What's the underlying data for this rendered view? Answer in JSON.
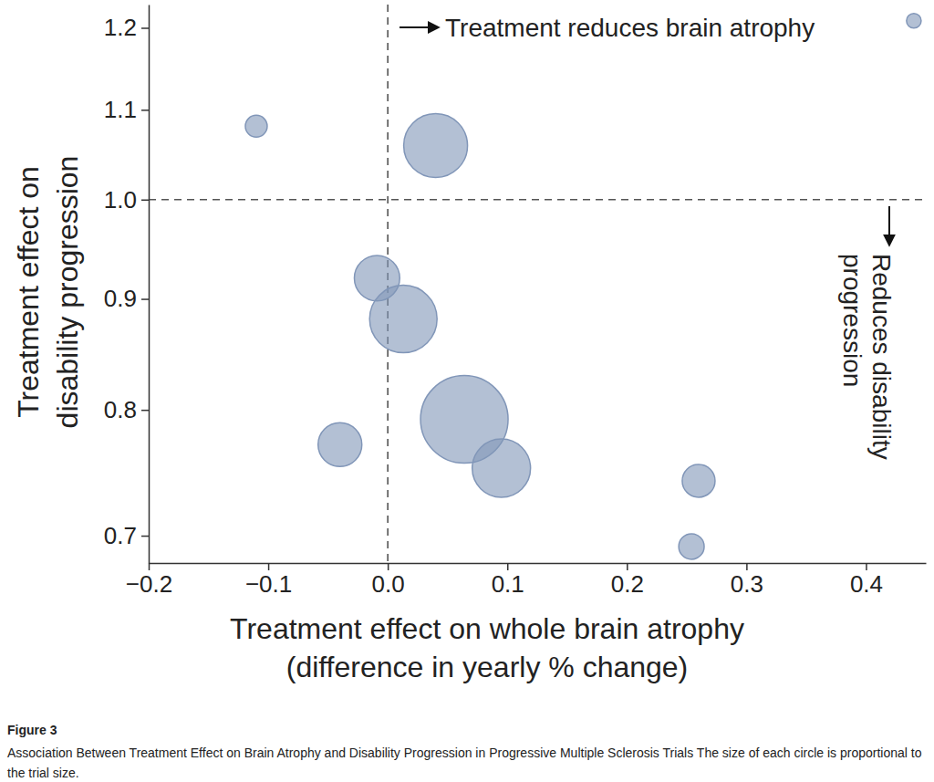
{
  "chart_data": {
    "type": "scatter",
    "title": "Figure 3",
    "subtitle": "Association Between Treatment Effect on Brain Atrophy and Disability  Progression in Progressive Multiple Sclerosis Trials The size of each circle is proportional to the trial size.",
    "x_label": [
      "Treatment effect on whole brain atrophy",
      "(difference in yearly % change)"
    ],
    "y_label": [
      "Treatment effect on",
      "disability progression"
    ],
    "annotations": [
      [
        "Treatment reduces brain atrophy"
      ],
      [
        "Reduces disability",
        "progression"
      ]
    ],
    "x": [
      -0.11,
      0.04,
      0.44,
      -0.009,
      0.013,
      0.064,
      -0.04,
      0.095,
      0.26,
      0.254
    ],
    "values": [
      1.081,
      1.059,
      1.209,
      0.92,
      0.881,
      0.792,
      0.771,
      0.752,
      0.742,
      0.692
    ],
    "sizes": [
      100,
      850,
      45,
      430,
      950,
      1600,
      400,
      710,
      225,
      135
    ],
    "color": "#8196b8",
    "marker": "circle",
    "reference_lines": {
      "x": 0,
      "y": 1
    },
    "xlim": [
      -0.2,
      0.45
    ],
    "ylim": [
      0.68,
      1.23
    ],
    "xticks": [
      {
        "value": -0.2,
        "label": "−0.2"
      },
      {
        "value": -0.1,
        "label": "−0.1"
      },
      {
        "value": 0,
        "label": "0.0"
      },
      0.1,
      0.2,
      0.3,
      0.4
    ],
    "yticks": [
      0.7,
      0.8,
      0.9,
      {
        "value": 1,
        "label": "1.0"
      },
      1.1,
      1.2
    ],
    "log": "y",
    "grid": false
  }
}
